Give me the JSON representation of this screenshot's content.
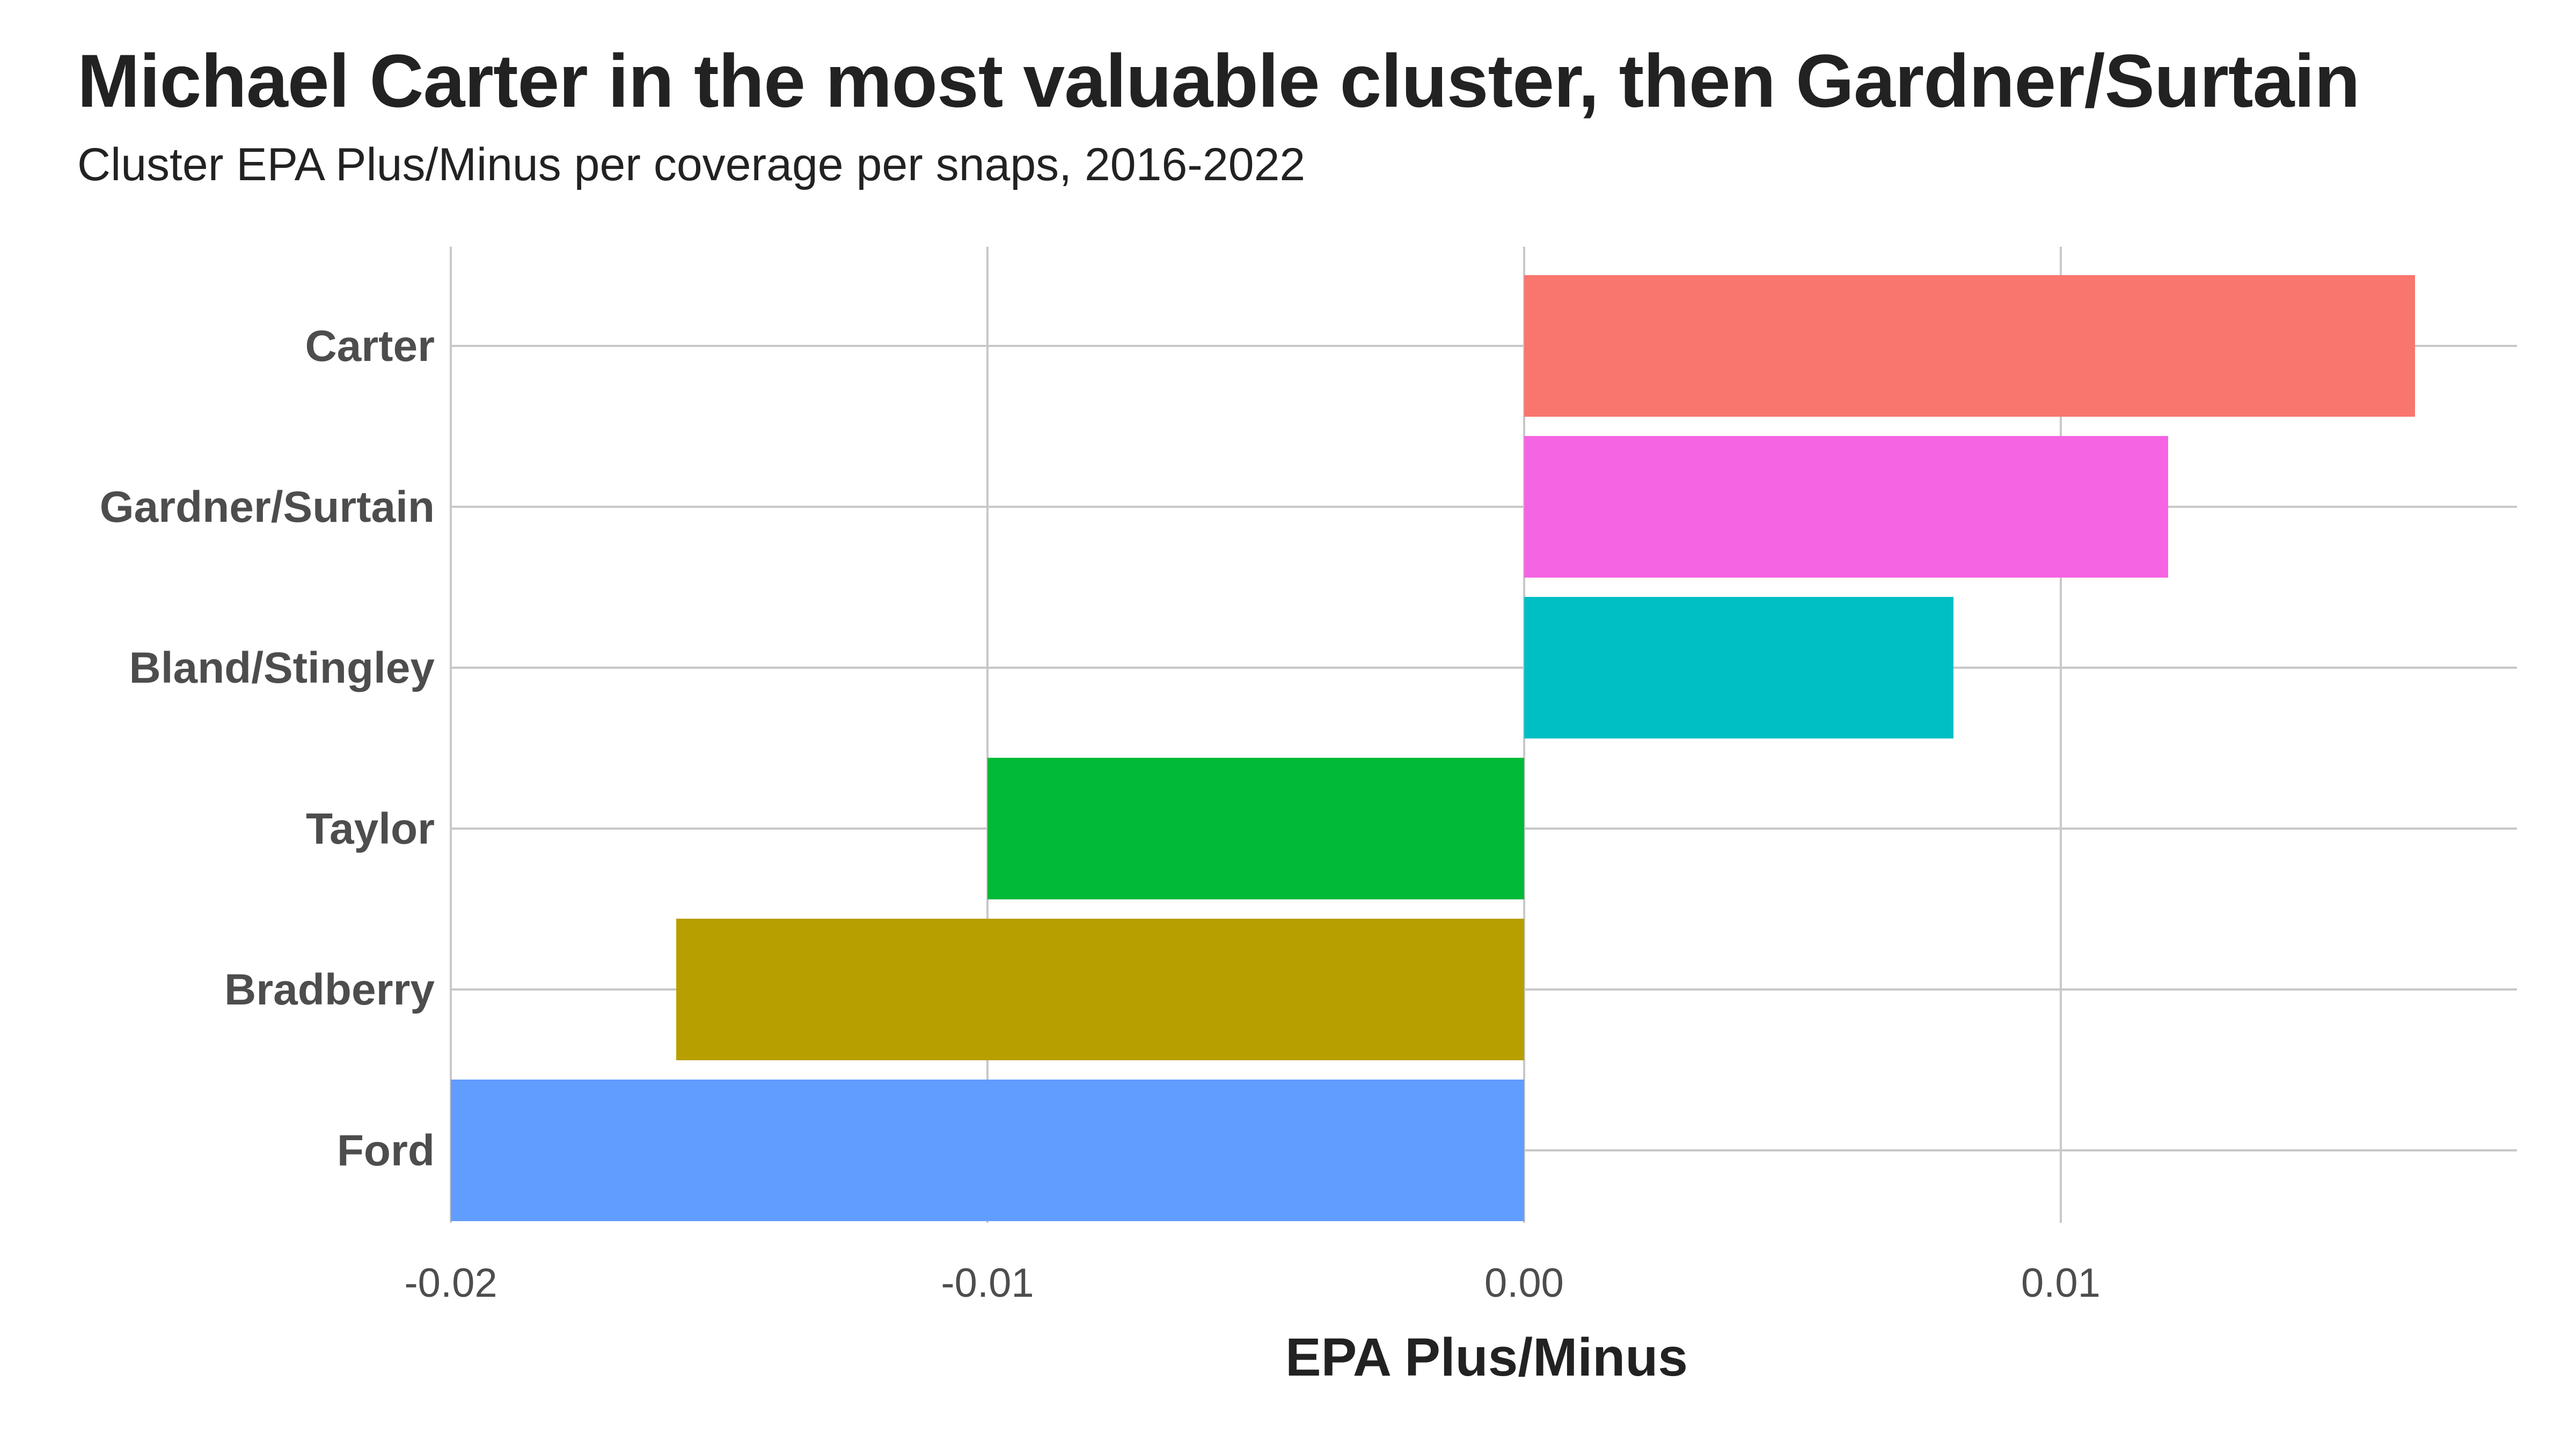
{
  "chart_data": {
    "type": "bar",
    "orientation": "horizontal",
    "title": "Michael Carter in the most valuable cluster, then Gardner/Surtain",
    "subtitle": "Cluster EPA Plus/Minus per coverage per snaps, 2016-2022",
    "xlabel": "EPA Plus/Minus",
    "ylabel": "",
    "xlim": [
      -0.02,
      0.0185
    ],
    "x_ticks": [
      "-0.02",
      "-0.01",
      "0.00",
      "0.01"
    ],
    "x_tick_values": [
      -0.02,
      -0.01,
      0.0,
      0.01
    ],
    "grid": true,
    "legend": "none",
    "categories": [
      "Carter",
      "Gardner/Surtain",
      "Bland/Stingley",
      "Taylor",
      "Bradberry",
      "Ford"
    ],
    "values": [
      0.0166,
      0.012,
      0.008,
      -0.01,
      -0.0158,
      -0.02
    ],
    "colors": [
      "#F8766D",
      "#F564E3",
      "#00BFC4",
      "#00BA38",
      "#B79F00",
      "#619CFF"
    ]
  }
}
